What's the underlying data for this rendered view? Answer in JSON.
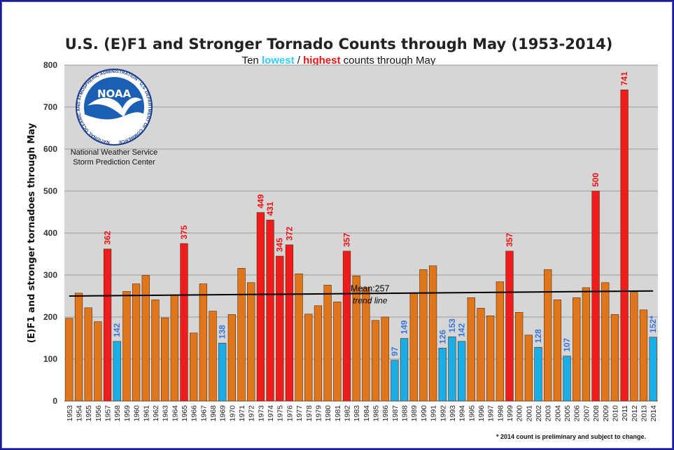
{
  "colors": {
    "normal": "#e0761c",
    "highest": "#ee1c1c",
    "lowest": "#1aaee8",
    "highest_label": "#ee1111",
    "lowest_label": "#3a78d8",
    "plot_bg": "#d6d6d6"
  },
  "noaa_logo_text": "NOAA",
  "noaa_ring_text": "NATIONAL OCEANIC AND ATMOSPHERIC ADMINISTRATION · U.S. DEPARTMENT OF COMMERCE",
  "org_line1": "National Weather Service",
  "org_line2": "Storm Prediction Center",
  "footnote": "* 2014 count is preliminary and subject to change.",
  "chart_data": {
    "type": "bar",
    "title": "U.S. (E)F1 and Stronger Tornado Counts through May (1953-2014)",
    "subtitle": {
      "prefix": "Ten ",
      "lowest_word": "lowest",
      "separator": " / ",
      "highest_word": "highest",
      "suffix": " counts through May"
    },
    "ylabel": "(E)F1 and stronger tornadoes through May",
    "ylim": [
      0,
      800
    ],
    "yticks": [
      0,
      100,
      200,
      300,
      400,
      500,
      600,
      700,
      800
    ],
    "grid": true,
    "categories": [
      "1953",
      "1954",
      "1955",
      "1956",
      "1957",
      "1958",
      "1959",
      "1960",
      "1961",
      "1962",
      "1963",
      "1964",
      "1965",
      "1966",
      "1967",
      "1968",
      "1969",
      "1970",
      "1971",
      "1972",
      "1973",
      "1974",
      "1975",
      "1976",
      "1977",
      "1978",
      "1979",
      "1980",
      "1981",
      "1982",
      "1983",
      "1984",
      "1985",
      "1986",
      "1987",
      "1988",
      "1989",
      "1990",
      "1991",
      "1992",
      "1993",
      "1994",
      "1995",
      "1996",
      "1997",
      "1998",
      "1999",
      "2000",
      "2001",
      "2002",
      "2003",
      "2004",
      "2005",
      "2006",
      "2007",
      "2008",
      "2009",
      "2010",
      "2011",
      "2012",
      "2013",
      "2014"
    ],
    "values": [
      197,
      257,
      222,
      189,
      362,
      142,
      261,
      279,
      299,
      241,
      198,
      253,
      375,
      162,
      279,
      214,
      138,
      206,
      316,
      282,
      449,
      431,
      345,
      372,
      303,
      207,
      227,
      276,
      236,
      357,
      298,
      270,
      192,
      200,
      97,
      149,
      258,
      313,
      322,
      126,
      153,
      142,
      246,
      221,
      203,
      284,
      357,
      211,
      157,
      128,
      313,
      241,
      107,
      246,
      270,
      500,
      282,
      206,
      741,
      259,
      217,
      152
    ],
    "categories_kind": [
      "normal",
      "normal",
      "normal",
      "normal",
      "highest",
      "lowest",
      "normal",
      "normal",
      "normal",
      "normal",
      "normal",
      "normal",
      "highest",
      "normal",
      "normal",
      "normal",
      "lowest",
      "normal",
      "normal",
      "normal",
      "highest",
      "highest",
      "highest",
      "highest",
      "normal",
      "normal",
      "normal",
      "normal",
      "normal",
      "highest",
      "normal",
      "normal",
      "normal",
      "normal",
      "lowest",
      "lowest",
      "normal",
      "normal",
      "normal",
      "lowest",
      "lowest",
      "lowest",
      "normal",
      "normal",
      "normal",
      "normal",
      "highest",
      "normal",
      "normal",
      "lowest",
      "normal",
      "normal",
      "lowest",
      "normal",
      "normal",
      "highest",
      "normal",
      "normal",
      "highest",
      "normal",
      "normal",
      "lowest"
    ],
    "data_labels": [
      "",
      "",
      "",
      "",
      "362",
      "142",
      "",
      "",
      "",
      "",
      "",
      "",
      "375",
      "",
      "",
      "",
      "138",
      "",
      "",
      "",
      "449",
      "431",
      "345",
      "372",
      "",
      "",
      "",
      "",
      "",
      "357",
      "",
      "",
      "",
      "",
      "97",
      "149",
      "",
      "",
      "",
      "126",
      "153",
      "142",
      "",
      "",
      "",
      "",
      "357",
      "",
      "",
      "128",
      "",
      "",
      "107",
      "",
      "",
      "500",
      "",
      "",
      "741",
      "",
      "",
      "152*"
    ],
    "trend_line": {
      "start_year": "1953",
      "start_value": 250,
      "end_year": "2014",
      "end_value": 262
    },
    "mean_label": "Mean:257",
    "trend_label": "trend line"
  }
}
